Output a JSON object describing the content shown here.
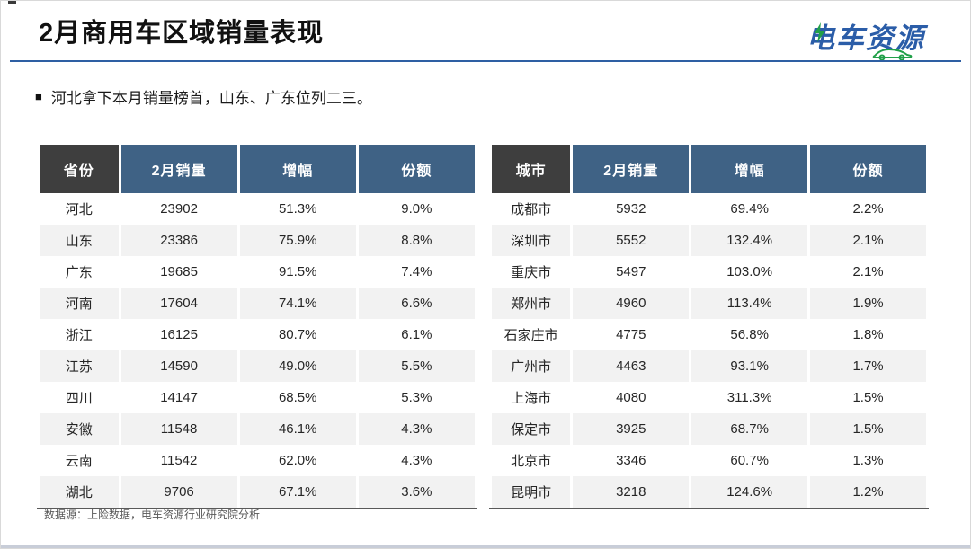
{
  "slide": {
    "title": "2月商用车区域销量表现",
    "bullet_marker": "■",
    "bullet": "河北拿下本月销量榜首，山东、广东位列二三。",
    "footer_source": "数据源：上险数据，电车资源行业研究院分析",
    "logo": {
      "text": "电车资源",
      "bolt_icon": "green-lightning",
      "car_icon": "green-car"
    }
  },
  "tables": [
    {
      "name": "province-sales-table",
      "headers": [
        "省份",
        "2月销量",
        "增幅",
        "份额"
      ],
      "rows": [
        [
          "河北",
          "23902",
          "51.3%",
          "9.0%"
        ],
        [
          "山东",
          "23386",
          "75.9%",
          "8.8%"
        ],
        [
          "广东",
          "19685",
          "91.5%",
          "7.4%"
        ],
        [
          "河南",
          "17604",
          "74.1%",
          "6.6%"
        ],
        [
          "浙江",
          "16125",
          "80.7%",
          "6.1%"
        ],
        [
          "江苏",
          "14590",
          "49.0%",
          "5.5%"
        ],
        [
          "四川",
          "14147",
          "68.5%",
          "5.3%"
        ],
        [
          "安徽",
          "11548",
          "46.1%",
          "4.3%"
        ],
        [
          "云南",
          "11542",
          "62.0%",
          "4.3%"
        ],
        [
          "湖北",
          "9706",
          "67.1%",
          "3.6%"
        ]
      ]
    },
    {
      "name": "city-sales-table",
      "headers": [
        "城市",
        "2月销量",
        "增幅",
        "份额"
      ],
      "rows": [
        [
          "成都市",
          "5932",
          "69.4%",
          "2.2%"
        ],
        [
          "深圳市",
          "5552",
          "132.4%",
          "2.1%"
        ],
        [
          "重庆市",
          "5497",
          "103.0%",
          "2.1%"
        ],
        [
          "郑州市",
          "4960",
          "113.4%",
          "1.9%"
        ],
        [
          "石家庄市",
          "4775",
          "56.8%",
          "1.8%"
        ],
        [
          "广州市",
          "4463",
          "93.1%",
          "1.7%"
        ],
        [
          "上海市",
          "4080",
          "311.3%",
          "1.5%"
        ],
        [
          "保定市",
          "3925",
          "68.7%",
          "1.5%"
        ],
        [
          "北京市",
          "3346",
          "60.7%",
          "1.3%"
        ],
        [
          "昆明市",
          "3218",
          "124.6%",
          "1.2%"
        ]
      ]
    }
  ],
  "colors": {
    "header_blue": "#3f6285",
    "header_dark": "#3e3e3e",
    "row_alt": "#f2f2f2",
    "title_underline": "#2e5fa3",
    "logo_blue": "#2b5da8",
    "logo_green": "#21a049",
    "table_bottom_border": "#595959",
    "bottom_strip": "#c8cdd8"
  }
}
